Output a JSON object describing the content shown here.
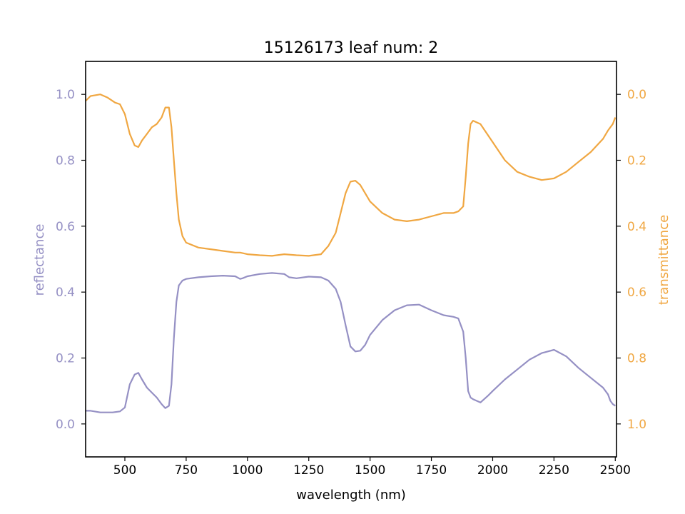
{
  "chart_data": {
    "type": "line",
    "title": "15126173 leaf num: 2",
    "xlabel": "wavelength (nm)",
    "ylabel_left": "reflectance",
    "ylabel_right": "transmittance",
    "xlim": [
      340,
      2505
    ],
    "ylim_left": [
      -0.1,
      1.1
    ],
    "ylim_right": [
      1.1,
      -0.1
    ],
    "right_axis_inverted": true,
    "x_ticks": [
      500,
      750,
      1000,
      1250,
      1500,
      1750,
      2000,
      2250,
      2500
    ],
    "x_tick_labels": [
      "500",
      "750",
      "1000",
      "1250",
      "1500",
      "1750",
      "2000",
      "2250",
      "2500"
    ],
    "y_left_ticks": [
      0.0,
      0.2,
      0.4,
      0.6,
      0.8,
      1.0
    ],
    "y_left_tick_labels": [
      "0.0",
      "0.2",
      "0.4",
      "0.6",
      "0.8",
      "1.0"
    ],
    "y_right_ticks": [
      0.0,
      0.2,
      0.4,
      0.6,
      0.8,
      1.0
    ],
    "y_right_tick_labels": [
      "0.0",
      "0.2",
      "0.4",
      "0.6",
      "0.8",
      "1.0"
    ],
    "grid": false,
    "legend": "none",
    "colors": {
      "reflectance": "#9590c4",
      "transmittance": "#f0a742",
      "axes": "#000000"
    },
    "series": [
      {
        "axis": "left",
        "x": [
          340,
          360,
          400,
          450,
          480,
          500,
          520,
          540,
          555,
          570,
          590,
          610,
          630,
          650,
          665,
          680,
          690,
          700,
          710,
          720,
          735,
          750,
          800,
          850,
          900,
          950,
          970,
          980,
          1000,
          1050,
          1100,
          1150,
          1170,
          1200,
          1250,
          1300,
          1330,
          1360,
          1380,
          1400,
          1420,
          1440,
          1460,
          1480,
          1500,
          1550,
          1600,
          1650,
          1700,
          1750,
          1800,
          1840,
          1860,
          1880,
          1890,
          1900,
          1910,
          1920,
          1950,
          1980,
          2000,
          2050,
          2100,
          2150,
          2200,
          2250,
          2300,
          2350,
          2400,
          2450,
          2470,
          2480,
          2490,
          2500
        ],
        "y": [
          0.04,
          0.04,
          0.035,
          0.035,
          0.038,
          0.05,
          0.12,
          0.15,
          0.155,
          0.135,
          0.11,
          0.095,
          0.08,
          0.06,
          0.048,
          0.055,
          0.12,
          0.26,
          0.37,
          0.42,
          0.435,
          0.44,
          0.445,
          0.448,
          0.45,
          0.448,
          0.44,
          0.442,
          0.448,
          0.455,
          0.458,
          0.455,
          0.445,
          0.442,
          0.447,
          0.445,
          0.435,
          0.41,
          0.37,
          0.3,
          0.235,
          0.22,
          0.222,
          0.24,
          0.27,
          0.315,
          0.345,
          0.36,
          0.362,
          0.345,
          0.33,
          0.325,
          0.32,
          0.28,
          0.2,
          0.1,
          0.08,
          0.075,
          0.065,
          0.085,
          0.1,
          0.135,
          0.165,
          0.195,
          0.215,
          0.225,
          0.205,
          0.17,
          0.14,
          0.11,
          0.09,
          0.07,
          0.06,
          0.055
        ]
      },
      {
        "axis": "right",
        "x": [
          340,
          360,
          400,
          430,
          460,
          480,
          500,
          520,
          540,
          555,
          570,
          590,
          610,
          630,
          650,
          665,
          680,
          690,
          700,
          710,
          720,
          735,
          750,
          800,
          850,
          900,
          950,
          970,
          1000,
          1050,
          1100,
          1150,
          1200,
          1250,
          1300,
          1330,
          1360,
          1380,
          1400,
          1420,
          1440,
          1460,
          1480,
          1500,
          1550,
          1600,
          1650,
          1700,
          1750,
          1800,
          1840,
          1860,
          1880,
          1890,
          1900,
          1910,
          1920,
          1950,
          2000,
          2050,
          2100,
          2150,
          2200,
          2250,
          2300,
          2350,
          2400,
          2450,
          2470,
          2490,
          2500
        ],
        "y": [
          0.02,
          0.005,
          0.0,
          0.01,
          0.025,
          0.03,
          0.06,
          0.12,
          0.155,
          0.16,
          0.14,
          0.12,
          0.1,
          0.09,
          0.07,
          0.04,
          0.04,
          0.1,
          0.2,
          0.3,
          0.38,
          0.43,
          0.45,
          0.465,
          0.47,
          0.475,
          0.48,
          0.48,
          0.485,
          0.488,
          0.49,
          0.485,
          0.488,
          0.49,
          0.485,
          0.46,
          0.42,
          0.36,
          0.3,
          0.265,
          0.262,
          0.275,
          0.3,
          0.325,
          0.36,
          0.38,
          0.385,
          0.38,
          0.37,
          0.36,
          0.36,
          0.355,
          0.34,
          0.25,
          0.15,
          0.09,
          0.08,
          0.09,
          0.145,
          0.2,
          0.235,
          0.25,
          0.26,
          0.255,
          0.235,
          0.205,
          0.175,
          0.135,
          0.11,
          0.09,
          0.07
        ]
      }
    ]
  }
}
